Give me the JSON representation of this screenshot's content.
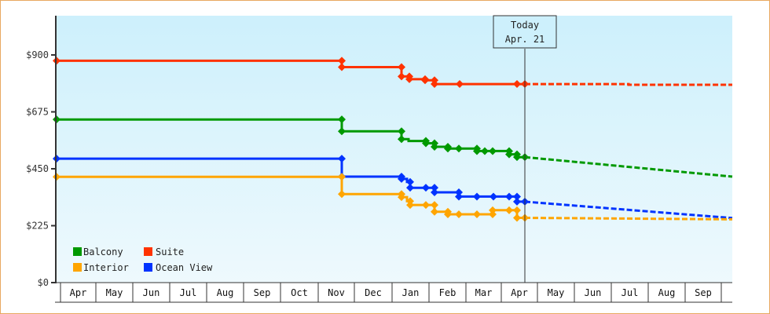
{
  "chart_data": {
    "type": "line",
    "title": "",
    "xlabel": "",
    "ylabel": "",
    "ylim": [
      0,
      1050
    ],
    "y_ticks": [
      "$0",
      "$225",
      "$450",
      "$675",
      "$900"
    ],
    "y_tick_values": [
      0,
      225,
      450,
      675,
      900
    ],
    "x_ticks": [
      "Apr",
      "May",
      "Jun",
      "Jul",
      "Aug",
      "Sep",
      "Oct",
      "Nov",
      "Dec",
      "Jan",
      "Feb",
      "Mar",
      "Apr",
      "May",
      "Jun",
      "Jul",
      "Aug",
      "Sep"
    ],
    "grid": false,
    "legend_position": "bottom-left inside",
    "annotation": {
      "line1": "Today",
      "line2": "Apr. 21"
    },
    "colors": {
      "Balcony": "#009900",
      "Suite": "#ff3300",
      "Interior": "#ffa500",
      "Ocean View": "#0033ff",
      "background_top": "#cdf0fc",
      "background_bottom": "#eef9fd",
      "frame": "#e8a860"
    },
    "series": [
      {
        "name": "Suite",
        "historical": [
          [
            72,
            877
          ],
          [
            435,
            877
          ],
          [
            435,
            852
          ],
          [
            511,
            852
          ],
          [
            511,
            815
          ],
          [
            521,
            815
          ],
          [
            521,
            804
          ],
          [
            541,
            804
          ],
          [
            541,
            800
          ],
          [
            553,
            800
          ],
          [
            553,
            785
          ],
          [
            585,
            785
          ],
          [
            658,
            785
          ],
          [
            668,
            785
          ]
        ],
        "markers_x": [
          72,
          435,
          435,
          511,
          511,
          521,
          521,
          541,
          553,
          553,
          585,
          658,
          668
        ],
        "forecast": [
          [
            668,
            785
          ],
          [
            800,
            785
          ],
          [
            800,
            782
          ],
          [
            932,
            782
          ]
        ]
      },
      {
        "name": "Balcony",
        "historical": [
          [
            72,
            645
          ],
          [
            435,
            645
          ],
          [
            435,
            598
          ],
          [
            511,
            598
          ],
          [
            511,
            567
          ],
          [
            520,
            567
          ],
          [
            520,
            560
          ],
          [
            542,
            560
          ],
          [
            542,
            551
          ],
          [
            553,
            551
          ],
          [
            553,
            537
          ],
          [
            570,
            537
          ],
          [
            570,
            530
          ],
          [
            584,
            530
          ],
          [
            607,
            530
          ],
          [
            607,
            520
          ],
          [
            617,
            520
          ],
          [
            627,
            520
          ],
          [
            648,
            520
          ],
          [
            648,
            507
          ],
          [
            658,
            507
          ],
          [
            658,
            496
          ],
          [
            668,
            496
          ]
        ],
        "markers_x": [
          72,
          435,
          435,
          511,
          511,
          518,
          521,
          542,
          553,
          553,
          570,
          584,
          607,
          617,
          627,
          648,
          658,
          668
        ],
        "forecast": [
          [
            668,
            496
          ],
          [
            932,
            419
          ]
        ]
      },
      {
        "name": "Ocean View",
        "historical": [
          [
            72,
            490
          ],
          [
            435,
            490
          ],
          [
            435,
            419
          ],
          [
            511,
            419
          ],
          [
            511,
            410
          ],
          [
            518,
            410
          ],
          [
            518,
            398
          ],
          [
            522,
            398
          ],
          [
            522,
            375
          ],
          [
            542,
            375
          ],
          [
            553,
            375
          ],
          [
            553,
            357
          ],
          [
            584,
            357
          ],
          [
            584,
            340
          ],
          [
            607,
            340
          ],
          [
            628,
            340
          ],
          [
            648,
            340
          ],
          [
            658,
            340
          ],
          [
            658,
            320
          ],
          [
            668,
            320
          ]
        ],
        "markers_x": [
          72,
          435,
          435,
          511,
          516,
          521,
          522,
          542,
          553,
          553,
          584,
          607,
          628,
          648,
          658,
          668
        ],
        "forecast": [
          [
            668,
            320
          ],
          [
            932,
            255
          ]
        ]
      },
      {
        "name": "Interior",
        "historical": [
          [
            72,
            418
          ],
          [
            435,
            418
          ],
          [
            435,
            350
          ],
          [
            511,
            350
          ],
          [
            511,
            338
          ],
          [
            518,
            338
          ],
          [
            518,
            322
          ],
          [
            522,
            322
          ],
          [
            522,
            307
          ],
          [
            542,
            307
          ],
          [
            553,
            307
          ],
          [
            553,
            280
          ],
          [
            570,
            280
          ],
          [
            570,
            270
          ],
          [
            584,
            270
          ],
          [
            607,
            270
          ],
          [
            627,
            270
          ],
          [
            627,
            286
          ],
          [
            648,
            286
          ],
          [
            658,
            286
          ],
          [
            658,
            256
          ],
          [
            668,
            256
          ]
        ],
        "markers_x": [
          72,
          435,
          435,
          511,
          516,
          521,
          522,
          542,
          553,
          555,
          570,
          584,
          607,
          627,
          628,
          648,
          658,
          668
        ],
        "forecast": [
          [
            668,
            256
          ],
          [
            932,
            250
          ]
        ]
      }
    ]
  },
  "legend": {
    "items": [
      {
        "label": "Balcony",
        "color": "#009900"
      },
      {
        "label": "Suite",
        "color": "#ff3300"
      },
      {
        "label": "Interior",
        "color": "#ffa500"
      },
      {
        "label": "Ocean View",
        "color": "#0033ff"
      }
    ]
  },
  "today": {
    "line1": "Today",
    "line2": "Apr. 21"
  },
  "axis": {
    "y_labels": [
      "$0",
      "$225",
      "$450",
      "$675",
      "$900"
    ],
    "months": [
      "Apr",
      "May",
      "Jun",
      "Jul",
      "Aug",
      "Sep",
      "Oct",
      "Nov",
      "Dec",
      "Jan",
      "Feb",
      "Mar",
      "Apr",
      "May",
      "Jun",
      "Jul",
      "Aug",
      "Sep"
    ]
  }
}
